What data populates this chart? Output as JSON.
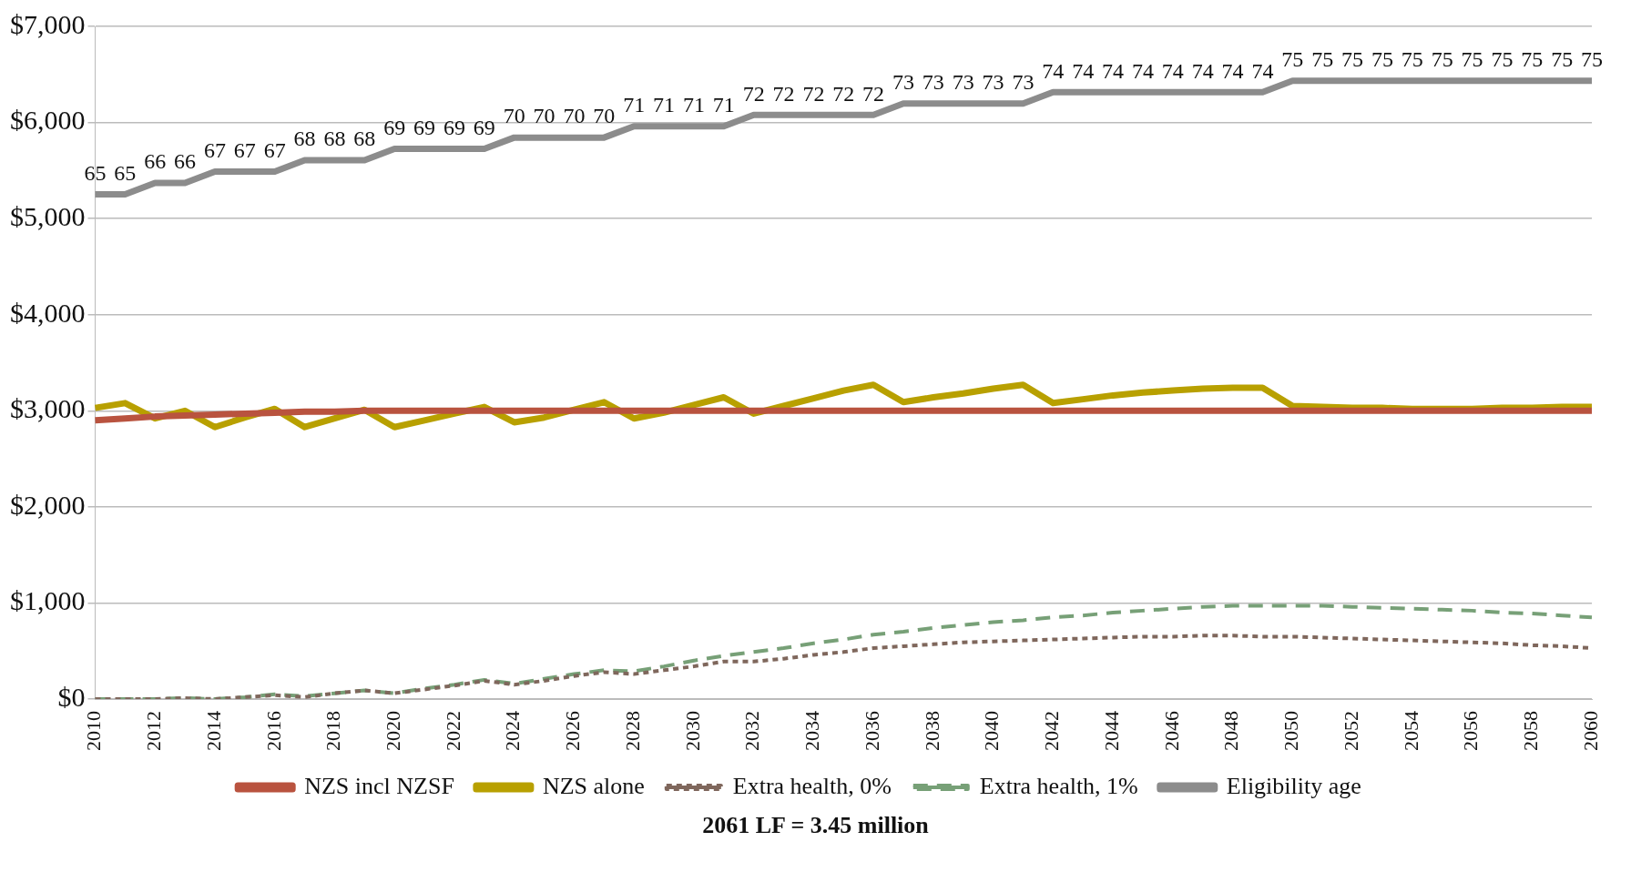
{
  "chart_data": {
    "type": "line",
    "categories": [
      "2010",
      null,
      "2012",
      null,
      "2014",
      null,
      "2016",
      null,
      "2018",
      null,
      "2020",
      null,
      "2022",
      null,
      "2024",
      null,
      "2026",
      null,
      "2028",
      null,
      "2030",
      null,
      "2032",
      null,
      "2034",
      null,
      "2036",
      null,
      "2038",
      null,
      "2040",
      null,
      "2042",
      null,
      "2044",
      null,
      "2046",
      null,
      "2048",
      null,
      "2050",
      null,
      "2052",
      null,
      "2054",
      null,
      "2056",
      null,
      "2058",
      null,
      "2060"
    ],
    "ylim": [
      0,
      7000
    ],
    "yticks": [
      {
        "value": 0,
        "label": "$0"
      },
      {
        "value": 1000,
        "label": "$1,000"
      },
      {
        "value": 2000,
        "label": "$2,000"
      },
      {
        "value": 3000,
        "label": "$3,000"
      },
      {
        "value": 4000,
        "label": "$4,000"
      },
      {
        "value": 5000,
        "label": "$5,000"
      },
      {
        "value": 6000,
        "label": "$6,000"
      },
      {
        "value": 7000,
        "label": "$7,000"
      }
    ],
    "y2lim": [
      20.5,
      79.8
    ],
    "tick_labels": "xy",
    "grid": "y",
    "legend": "bottom",
    "marker": "none",
    "annotations": [
      "2061 LF = 3.45 million"
    ],
    "series": [
      {
        "name": "NZS incl NZSF",
        "color": "#b9533f",
        "line_style": "solid",
        "values": [
          2900,
          2920,
          2940,
          2950,
          2960,
          2970,
          2980,
          2990,
          2990,
          3000,
          3000,
          3000,
          3000,
          3000,
          3000,
          3000,
          3000,
          3000,
          3000,
          3000,
          3000,
          3000,
          3000,
          3000,
          3000,
          3000,
          3000,
          3000,
          3000,
          3000,
          3000,
          3000,
          3000,
          3000,
          3000,
          3000,
          3000,
          3000,
          3000,
          3000,
          3000,
          3000,
          3000,
          3000,
          3000,
          3000,
          3000,
          3000,
          3000,
          3000,
          3000
        ]
      },
      {
        "name": "NZS alone",
        "color": "#b8a000",
        "line_style": "solid",
        "values": [
          3030,
          3080,
          2920,
          3000,
          2830,
          2930,
          3020,
          2830,
          2920,
          3010,
          2830,
          2900,
          2970,
          3040,
          2880,
          2930,
          3010,
          3090,
          2920,
          2980,
          3060,
          3140,
          2970,
          3050,
          3130,
          3210,
          3270,
          3090,
          3140,
          3180,
          3230,
          3270,
          3080,
          3120,
          3160,
          3190,
          3210,
          3230,
          3240,
          3240,
          3050,
          3040,
          3030,
          3030,
          3020,
          3020,
          3020,
          3030,
          3030,
          3040,
          3040
        ]
      },
      {
        "name": "Extra health, 0%",
        "color": "#7f675c",
        "line_style": "dotted",
        "values": [
          0,
          0,
          0,
          10,
          0,
          20,
          40,
          20,
          60,
          90,
          60,
          100,
          140,
          190,
          150,
          190,
          240,
          280,
          260,
          300,
          340,
          390,
          390,
          420,
          460,
          490,
          530,
          550,
          570,
          590,
          600,
          610,
          620,
          630,
          640,
          650,
          650,
          660,
          660,
          650,
          650,
          640,
          630,
          620,
          610,
          600,
          590,
          580,
          560,
          550,
          530
        ]
      },
      {
        "name": "Extra health, 1%",
        "color": "#77a077",
        "line_style": "dashed",
        "values": [
          0,
          0,
          0,
          10,
          0,
          20,
          50,
          30,
          60,
          90,
          60,
          110,
          150,
          200,
          160,
          210,
          260,
          300,
          290,
          340,
          400,
          450,
          490,
          530,
          580,
          620,
          670,
          700,
          740,
          770,
          800,
          820,
          850,
          870,
          900,
          920,
          940,
          960,
          970,
          970,
          970,
          970,
          960,
          950,
          940,
          930,
          920,
          900,
          890,
          870,
          850
        ]
      },
      {
        "name": "Eligibility age",
        "color": "#8c8c8c",
        "line_style": "solid",
        "axis": "y2",
        "values": [
          65,
          65,
          66,
          66,
          67,
          67,
          67,
          68,
          68,
          68,
          69,
          69,
          69,
          69,
          70,
          70,
          70,
          70,
          71,
          71,
          71,
          71,
          72,
          72,
          72,
          72,
          72,
          73,
          73,
          73,
          73,
          73,
          74,
          74,
          74,
          74,
          74,
          74,
          74,
          74,
          75,
          75,
          75,
          75,
          75,
          75,
          75,
          75,
          75,
          75,
          75
        ],
        "value_labels": [
          "65",
          "65",
          "66",
          "66",
          "67",
          "67",
          "67",
          "68",
          "68",
          "68",
          "69",
          "69",
          "69",
          "69",
          "70",
          "70",
          "70",
          "70",
          "71",
          "71",
          "71",
          "71",
          "72",
          "72",
          "72",
          "72",
          "72",
          "73",
          "73",
          "73",
          "73",
          "73",
          "74",
          "74",
          "74",
          "74",
          "74",
          "74",
          "74",
          "74",
          "75",
          "75",
          "75",
          "75",
          "75",
          "75",
          "75",
          "75",
          "75",
          "75",
          "75"
        ]
      }
    ]
  }
}
